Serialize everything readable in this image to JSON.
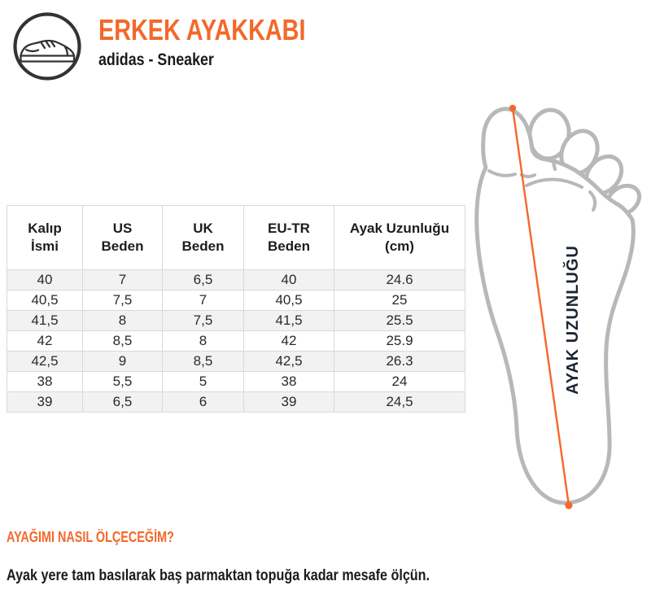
{
  "header": {
    "title": "ERKEK AYAKKABI",
    "subtitle": "adidas - Sneaker",
    "icon": "sneaker-icon"
  },
  "size_table": {
    "columns": [
      "Kalıp\nİsmi",
      "US\nBeden",
      "UK\nBeden",
      "EU-TR\nBeden",
      "Ayak Uzunluğu\n(cm)"
    ],
    "rows": [
      [
        "40",
        "7",
        "6,5",
        "40",
        "24.6"
      ],
      [
        "40,5",
        "7,5",
        "7",
        "40,5",
        "25"
      ],
      [
        "41,5",
        "8",
        "7,5",
        "41,5",
        "25.5"
      ],
      [
        "42",
        "8,5",
        "8",
        "42",
        "25.9"
      ],
      [
        "42,5",
        "9",
        "8,5",
        "42,5",
        "26.3"
      ],
      [
        "38",
        "5,5",
        "5",
        "38",
        "24"
      ],
      [
        "39",
        "6,5",
        "6",
        "39",
        "24,5"
      ]
    ]
  },
  "foot_diagram": {
    "label": "AYAK UZUNLUĞU",
    "line_icon": "measurement-line-icon"
  },
  "how_to": {
    "heading": "AYAĞIMI NASIL ÖLÇECEĞİM?",
    "text": "Ayak yere tam basılarak baş parmaktan topuğa kadar mesafe ölçün."
  },
  "colors": {
    "accent_orange": "#F4682A",
    "label_navy": "#1C2433",
    "foot_outline_gray": "#B8B8B8",
    "table_border": "#D9D9D9",
    "row_stripe": "#F2F2F2"
  }
}
